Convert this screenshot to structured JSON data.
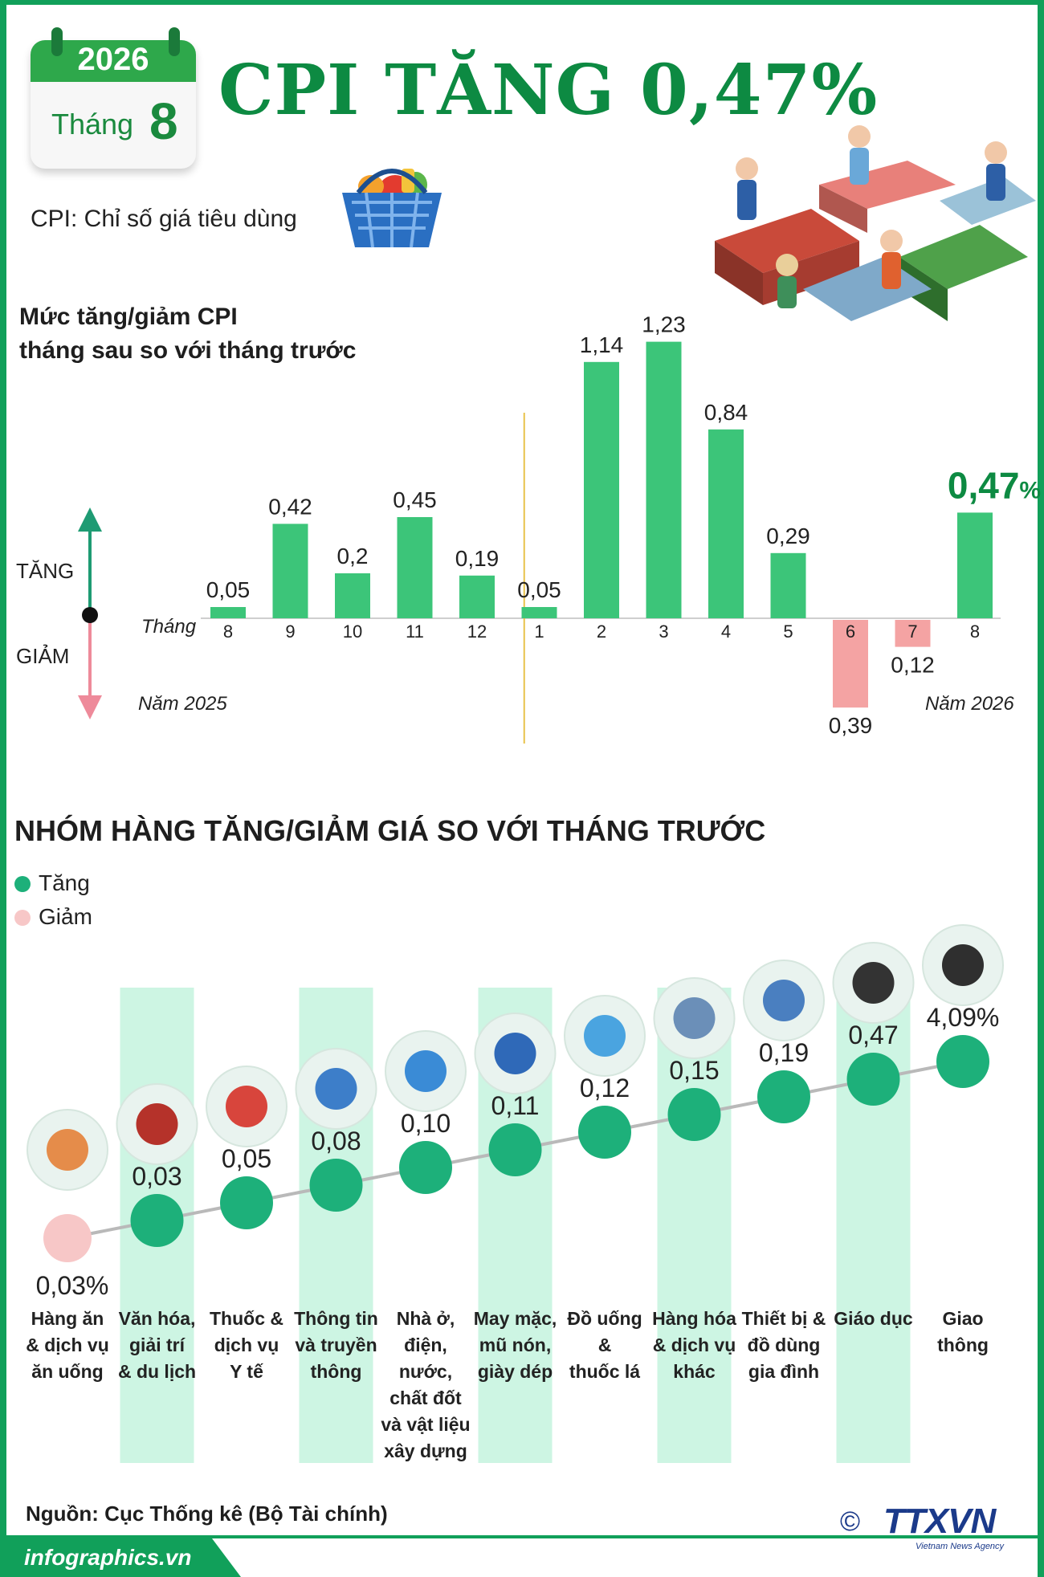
{
  "header": {
    "year": "2026",
    "month_label": "Tháng",
    "month_number": "8",
    "title": "CPI TĂNG 0,47%",
    "cpi_definition": "CPI: Chỉ số giá tiêu dùng"
  },
  "colors": {
    "brand_green": "#11a05a",
    "bar_up": "#3cc579",
    "bar_down": "#f4a3a3",
    "arrow_up": "#1e9b73",
    "arrow_down": "#ee8a9a",
    "divider": "#e8c24a",
    "dot_up": "#1db07a",
    "dot_down": "#f7c7c7",
    "column_bg": "#cdf5e3",
    "highlight": "#0d8a42"
  },
  "chart_data": [
    {
      "type": "bar",
      "title_lines": [
        "Mức tăng/giảm CPI",
        "tháng sau so với tháng trước"
      ],
      "increase_label": "TĂNG",
      "decrease_label": "GIẢM",
      "month_axis_label": "Tháng",
      "year_labels": [
        "Năm 2025",
        "Năm 2026"
      ],
      "categories": [
        "8",
        "9",
        "10",
        "11",
        "12",
        "1",
        "2",
        "3",
        "4",
        "5",
        "6",
        "7",
        "8"
      ],
      "values": [
        0.05,
        0.42,
        0.2,
        0.45,
        0.19,
        0.05,
        1.14,
        1.23,
        0.84,
        0.29,
        -0.39,
        -0.12,
        0.47
      ],
      "value_labels": [
        "0,05",
        "0,42",
        "0,2",
        "0,45",
        "0,19",
        "0,05",
        "1,14",
        "1,23",
        "0,84",
        "0,29",
        "0,39",
        "0,12",
        "0,47"
      ],
      "highlight_label": "0,47",
      "highlight_unit": "%",
      "ylim": [
        -0.4,
        1.3
      ]
    },
    {
      "type": "scatter",
      "title": "NHÓM HÀNG TĂNG/GIẢM GIÁ SO VỚI THÁNG TRƯỚC",
      "legend": [
        {
          "name": "Tăng",
          "color": "#1db07a"
        },
        {
          "name": "Giảm",
          "color": "#f7c7c7"
        }
      ],
      "categories": [
        [
          "Hàng ăn",
          "& dịch vụ",
          "ăn uống"
        ],
        [
          "Văn hóa,",
          "giải trí",
          "& du lịch"
        ],
        [
          "Thuốc &",
          "dịch vụ",
          "Y tế"
        ],
        [
          "Thông tin",
          "và truyền",
          "thông"
        ],
        [
          "Nhà ở,",
          "điện,",
          "nước,",
          "chất đốt",
          "và vật liệu",
          "xây dựng"
        ],
        [
          "May mặc,",
          "mũ nón,",
          "giày dép"
        ],
        [
          "Đồ uống",
          "&",
          "thuốc lá"
        ],
        [
          "Hàng hóa",
          "& dịch vụ",
          "khác"
        ],
        [
          "Thiết bị &",
          "đồ dùng",
          "gia đình"
        ],
        [
          "Giáo dục"
        ],
        [
          "Giao",
          "thông"
        ]
      ],
      "values": [
        -0.03,
        0.03,
        0.05,
        0.08,
        0.1,
        0.11,
        0.12,
        0.15,
        0.19,
        0.47,
        4.09
      ],
      "value_labels": [
        "0,03%",
        "0,03",
        "0,05",
        "0,08",
        "0,10",
        "0,11",
        "0,12",
        "0,15",
        "0,19",
        "0,47",
        "4,09%"
      ],
      "direction": [
        "down",
        "up",
        "up",
        "up",
        "up",
        "up",
        "up",
        "up",
        "up",
        "up",
        "up"
      ]
    }
  ],
  "footer": {
    "source": "Nguồn: Cục Thống kê (Bộ Tài chính)",
    "site": "infographics.vn",
    "copyright_symbol": "©",
    "agency_logo_text": "TTXVN",
    "agency_subtitle": "Vietnam News Agency"
  }
}
